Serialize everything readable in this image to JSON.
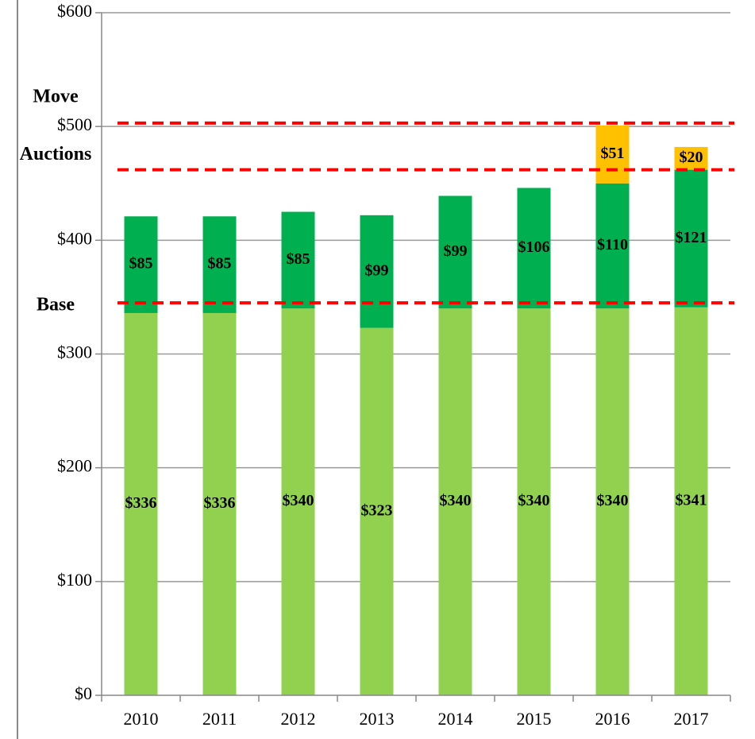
{
  "chart_data": {
    "type": "stacked_bar",
    "categories": [
      "2010",
      "2011",
      "2012",
      "2013",
      "2014",
      "2015",
      "2016",
      "2017"
    ],
    "series": [
      {
        "color": "#92d050",
        "values": [
          336,
          336,
          340,
          323,
          340,
          340,
          340,
          341
        ],
        "value_labels": [
          "$336",
          "$336",
          "$340",
          "$323",
          "$340",
          "$340",
          "$340",
          "$341"
        ]
      },
      {
        "color": "#00b050",
        "values": [
          85,
          85,
          85,
          99,
          99,
          106,
          110,
          121
        ],
        "value_labels": [
          "$85",
          "$85",
          "$85",
          "$99",
          "$99",
          "$106",
          "$110",
          "$121"
        ]
      },
      {
        "color": "#ffc000",
        "values": [
          null,
          null,
          null,
          null,
          null,
          null,
          51,
          20
        ],
        "value_labels": [
          null,
          null,
          null,
          null,
          null,
          null,
          "$51",
          "$20"
        ]
      }
    ],
    "annotations": [
      {
        "label": "Move",
        "value": 503
      },
      {
        "label": "Auctions",
        "value": 462
      },
      {
        "label": "Base",
        "value": 345
      }
    ],
    "annotation_color": "#ff0000",
    "ylim": [
      0,
      600
    ],
    "yticks": [
      {
        "value": 0,
        "label": "$0"
      },
      {
        "value": 100,
        "label": "$100"
      },
      {
        "value": 200,
        "label": "$200"
      },
      {
        "value": 300,
        "label": "$300"
      },
      {
        "value": 400,
        "label": "$400"
      },
      {
        "value": 500,
        "label": "$500"
      },
      {
        "value": 600,
        "label": "$600"
      }
    ],
    "grid": true
  }
}
